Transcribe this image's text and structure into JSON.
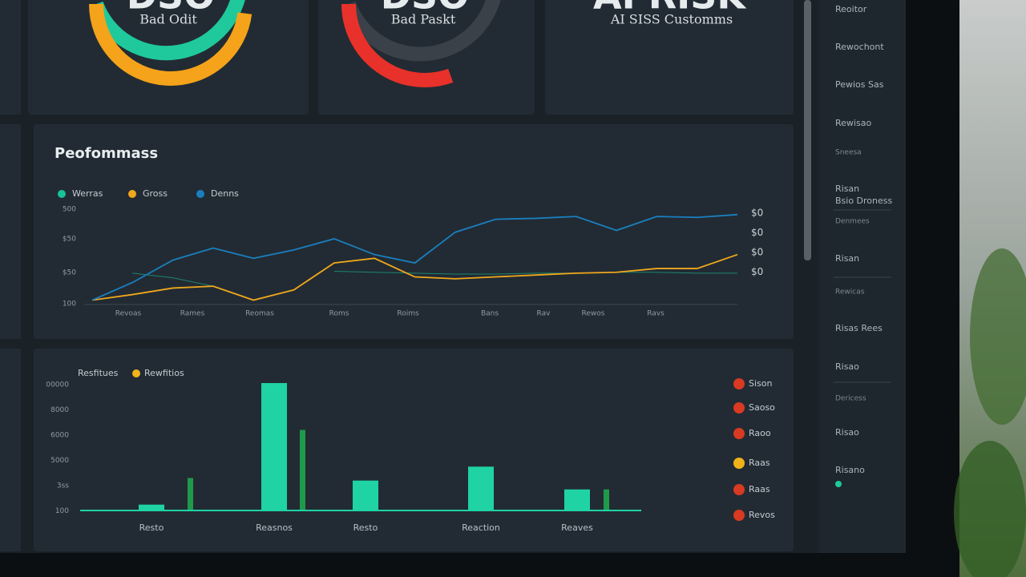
{
  "gauges": [
    {
      "big": "DSO",
      "label": "Bad Odit",
      "value": 96,
      "color": "#f5a31a",
      "track": "#1fc99b"
    },
    {
      "big": "DSO",
      "label": "Bad Paskt",
      "value": 61,
      "color": "#e8312a",
      "track": "#3a4148"
    }
  ],
  "risk_card": {
    "big": "AI RISK",
    "label": "AI SISS Customms"
  },
  "performance": {
    "title": "Peofommass",
    "ylim": [
      0,
      100
    ],
    "y_labels": [
      "500",
      "$50",
      "$50",
      "100"
    ],
    "right_labels": [
      "$0",
      "$0",
      "$0",
      "$0"
    ],
    "x_labels": [
      "Revoas",
      "Rames",
      "Reomas",
      "Roms",
      "Roims",
      "Bans",
      "Rav",
      "Rewos",
      "Ravs"
    ],
    "series": [
      {
        "name": "Werras",
        "color": "#17c29a",
        "values": [
          null,
          32,
          27,
          18,
          null,
          null,
          34,
          33,
          32,
          31,
          31,
          32,
          32,
          33,
          33,
          32,
          32
        ]
      },
      {
        "name": "Gross",
        "color": "#f0a81c",
        "values": [
          3,
          9,
          16,
          18,
          3,
          14,
          43,
          48,
          28,
          26,
          28,
          30,
          32,
          33,
          37,
          37,
          52
        ]
      },
      {
        "name": "Denns",
        "color": "#1a7fc0",
        "values": [
          3,
          22,
          46,
          59,
          48,
          57,
          69,
          52,
          43,
          76,
          90,
          91,
          93,
          78,
          93,
          92,
          95
        ]
      }
    ]
  },
  "bar_panel": {
    "legend": [
      "Resfitues",
      "Rewfitios"
    ],
    "y_labels": [
      "00000",
      "8000",
      "6000",
      "5000",
      "3ss",
      "100"
    ],
    "ylim": [
      0,
      100
    ],
    "categories": [
      "Resto",
      "Reasnos",
      "Resto",
      "Reaction",
      "Reaves"
    ],
    "series": [
      {
        "color": "#1fd3a5",
        "values": [
          4,
          100,
          23,
          34,
          16
        ]
      },
      {
        "color": "#1f9a4a",
        "values": [
          25,
          63,
          0,
          0,
          16
        ]
      }
    ],
    "list": [
      {
        "label": "Sison",
        "color": "#d83a22"
      },
      {
        "label": "Saoso",
        "color": "#d83a22"
      },
      {
        "label": "Raoo",
        "color": "#d83a22"
      },
      {
        "label": "Raas",
        "color": "#f0b41a"
      },
      {
        "label": "Raas",
        "color": "#d83a22"
      },
      {
        "label": "Revos",
        "color": "#d83a22"
      }
    ]
  },
  "sidebar": [
    "Reoitor",
    "Rewochont",
    "Pewios Sas",
    "Rewisao",
    "Sneesa",
    "Risan",
    "Bsio Droness",
    "Denmees",
    "Risan",
    "Rewicas",
    "Risas Rees",
    "Risao",
    "Dericess",
    "Risao",
    "Risano"
  ]
}
